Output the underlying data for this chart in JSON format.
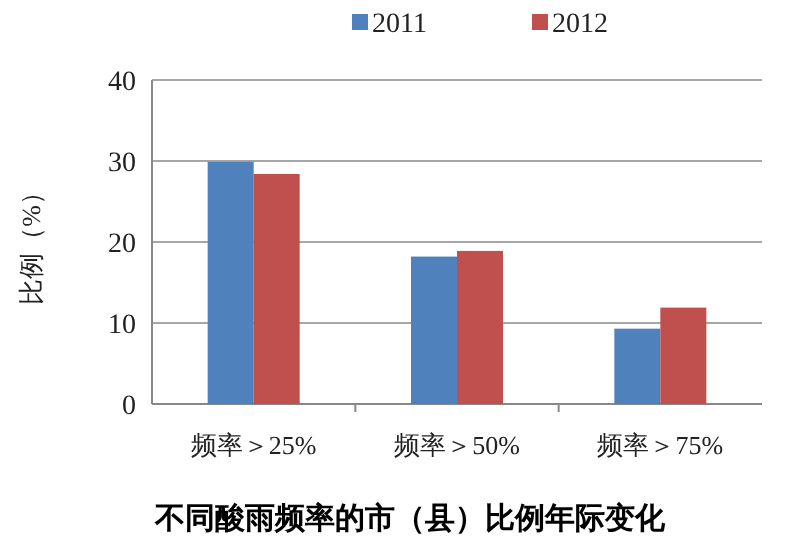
{
  "chart_data": {
    "type": "bar",
    "title": "不同酸雨频率的市（县）比例年际变化",
    "ylabel": "比例（%）",
    "categories": [
      "频率＞25%",
      "频率＞50%",
      "频率＞75%"
    ],
    "series": [
      {
        "name": "2011",
        "color": "#4f81bd",
        "values": [
          29.9,
          18.2,
          9.3
        ]
      },
      {
        "name": "2012",
        "color": "#c0504d",
        "values": [
          28.4,
          18.9,
          11.9
        ]
      }
    ],
    "ylim": [
      0,
      40
    ],
    "yticks": [
      0,
      10,
      20,
      30,
      40
    ],
    "grid": "y",
    "legend": "top"
  }
}
